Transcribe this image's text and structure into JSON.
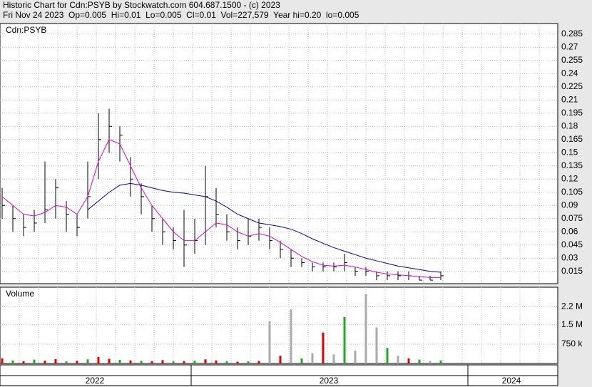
{
  "chart_data": {
    "type": "hlc",
    "title": "Historic Chart for Cdn:PSYB by Stockwatch.com 604.687.1500 - (c) 2023",
    "subtitle": "Fri Nov 24 2023  Op=0.005  Hi=0.01  Lo=0.005  Cl=0.01  Vol=227,579  Year hi=0.20  lo=0.005",
    "price_label": "Cdn:PSYB",
    "volume_label": "Volume",
    "years": [
      "2022",
      "2023",
      "2024"
    ],
    "high": [
      0.11,
      0.09,
      0.08,
      0.085,
      0.14,
      0.12,
      0.095,
      0.08,
      0.14,
      0.195,
      0.2,
      0.18,
      0.145,
      0.115,
      0.09,
      0.075,
      0.065,
      0.085,
      0.075,
      0.135,
      0.11,
      0.08,
      0.065,
      0.075,
      0.075,
      0.065,
      0.05,
      0.04,
      0.03,
      0.025,
      0.025,
      0.025,
      0.035,
      0.02,
      0.02,
      0.015,
      0.015,
      0.015,
      0.015,
      0.01,
      0.01,
      0.015
    ],
    "low": [
      0.075,
      0.06,
      0.055,
      0.06,
      0.07,
      0.075,
      0.06,
      0.055,
      0.075,
      0.12,
      0.15,
      0.14,
      0.1,
      0.08,
      0.06,
      0.045,
      0.04,
      0.02,
      0.035,
      0.045,
      0.065,
      0.05,
      0.04,
      0.045,
      0.05,
      0.04,
      0.03,
      0.02,
      0.02,
      0.015,
      0.015,
      0.015,
      0.015,
      0.01,
      0.01,
      0.005,
      0.005,
      0.005,
      0.005,
      0.005,
      0.005,
      0.005
    ],
    "close": [
      0.09,
      0.075,
      0.065,
      0.07,
      0.085,
      0.11,
      0.08,
      0.065,
      0.1,
      0.165,
      0.18,
      0.17,
      0.12,
      0.1,
      0.075,
      0.06,
      0.05,
      0.045,
      0.05,
      0.1,
      0.08,
      0.06,
      0.05,
      0.055,
      0.065,
      0.05,
      0.04,
      0.03,
      0.025,
      0.02,
      0.02,
      0.02,
      0.025,
      0.015,
      0.015,
      0.01,
      0.01,
      0.01,
      0.01,
      0.005,
      0.005,
      0.01
    ],
    "bar_color": "#000000",
    "series": [
      {
        "color": "#e000e0",
        "values": [
          0.1,
          0.09,
          0.08,
          0.078,
          0.082,
          0.09,
          0.088,
          0.08,
          0.1,
          0.14,
          0.165,
          0.16,
          0.135,
          0.11,
          0.09,
          0.075,
          0.06,
          0.05,
          0.05,
          0.06,
          0.07,
          0.068,
          0.06,
          0.055,
          0.058,
          0.055,
          0.048,
          0.04,
          0.032,
          0.026,
          0.022,
          0.021,
          0.022,
          0.02,
          0.017,
          0.014,
          0.012,
          0.011,
          0.01,
          0.009,
          0.008,
          0.008
        ]
      },
      {
        "color": "#0000cc",
        "values": [
          null,
          null,
          null,
          null,
          null,
          null,
          null,
          null,
          0.085,
          0.095,
          0.105,
          0.113,
          0.115,
          0.113,
          0.11,
          0.107,
          0.105,
          0.104,
          0.102,
          0.1,
          0.095,
          0.088,
          0.08,
          0.075,
          0.07,
          0.068,
          0.066,
          0.063,
          0.058,
          0.052,
          0.047,
          0.042,
          0.038,
          0.034,
          0.03,
          0.027,
          0.024,
          0.021,
          0.019,
          0.017,
          0.015,
          0.014
        ]
      }
    ],
    "ylim": [
      0.001,
      0.297
    ],
    "yticks": [
      0.015,
      0.03,
      0.045,
      0.06,
      0.075,
      0.09,
      0.105,
      0.12,
      0.135,
      0.15,
      0.165,
      0.18,
      0.195,
      0.21,
      0.225,
      0.24,
      0.255,
      0.27,
      0.285
    ],
    "volume": [
      200000,
      120000,
      90000,
      150000,
      110000,
      170000,
      80000,
      100000,
      160000,
      250000,
      180000,
      140000,
      120000,
      100000,
      90000,
      130000,
      80000,
      90000,
      110000,
      160000,
      120000,
      90000,
      70000,
      80000,
      100000,
      1650000,
      300000,
      2100000,
      200000,
      400000,
      1200000,
      350000,
      1800000,
      500000,
      2700000,
      1400000,
      600000,
      300000,
      200000,
      150000,
      100000,
      120000
    ],
    "volume_colors": [
      "#dd0000",
      "#22aa22",
      "#dd0000",
      "#22aa22",
      "#dd0000",
      "#dd0000",
      "#22aa22",
      "#dd0000",
      "#22aa22",
      "#dd0000",
      "#dd0000",
      "#22aa22",
      "#dd0000",
      "#22aa22",
      "#dd0000",
      "#dd0000",
      "#22aa22",
      "#dd0000",
      "#22aa22",
      "#dd0000",
      "#dd0000",
      "#22aa22",
      "#dd0000",
      "#22aa22",
      "#dd0000",
      "#aaaaaa",
      "#dd0000",
      "#aaaaaa",
      "#22aa22",
      "#aaaaaa",
      "#dd0000",
      "#aaaaaa",
      "#22aa22",
      "#aaaaaa",
      "#aaaaaa",
      "#aaaaaa",
      "#22aa22",
      "#aaaaaa",
      "#dd0000",
      "#22aa22",
      "#aaaaaa",
      "#22aa22"
    ],
    "vlim": [
      0,
      2960000
    ],
    "vticks": [
      {
        "value": 750000,
        "label": "750 k"
      },
      {
        "value": 1500000,
        "label": "1.5 M"
      },
      {
        "value": 2200000,
        "label": "2.2 M"
      }
    ],
    "grid": true
  }
}
